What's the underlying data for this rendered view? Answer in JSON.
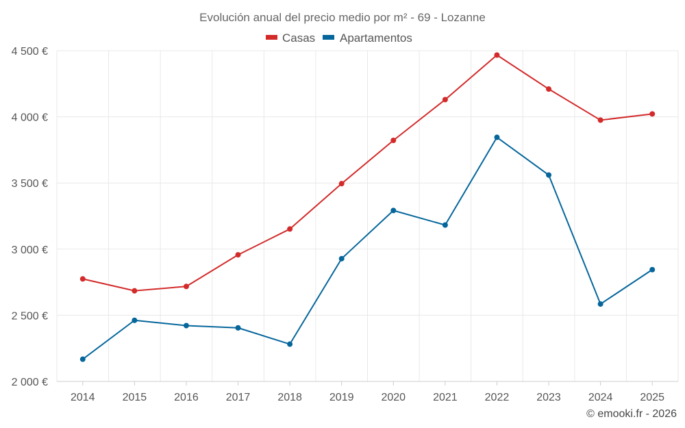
{
  "chart_data": {
    "type": "line",
    "title": "Evolución anual del precio medio por m² - 69 - Lozanne",
    "xlabel": "",
    "ylabel": "",
    "categories": [
      "2014",
      "2015",
      "2016",
      "2017",
      "2018",
      "2019",
      "2020",
      "2021",
      "2022",
      "2023",
      "2024",
      "2025"
    ],
    "ylim": [
      2000,
      4500
    ],
    "yticks": [
      2000,
      2500,
      3000,
      3500,
      4000,
      4500
    ],
    "ytick_labels": [
      "2 000 €",
      "2 500 €",
      "3 000 €",
      "3 500 €",
      "4 000 €",
      "4 500 €"
    ],
    "grid": true,
    "legend_position": "top-center",
    "series": [
      {
        "name": "Casas",
        "color": "#d32a2a",
        "values": [
          2775,
          2685,
          2718,
          2957,
          3152,
          3495,
          3822,
          4130,
          4467,
          4210,
          3975,
          4022
        ]
      },
      {
        "name": "Apartamentos",
        "color": "#05669b",
        "values": [
          2168,
          2462,
          2422,
          2405,
          2282,
          2928,
          3292,
          3182,
          3845,
          3560,
          2585,
          2845
        ]
      }
    ]
  },
  "credit": "© emooki.fr - 2026"
}
